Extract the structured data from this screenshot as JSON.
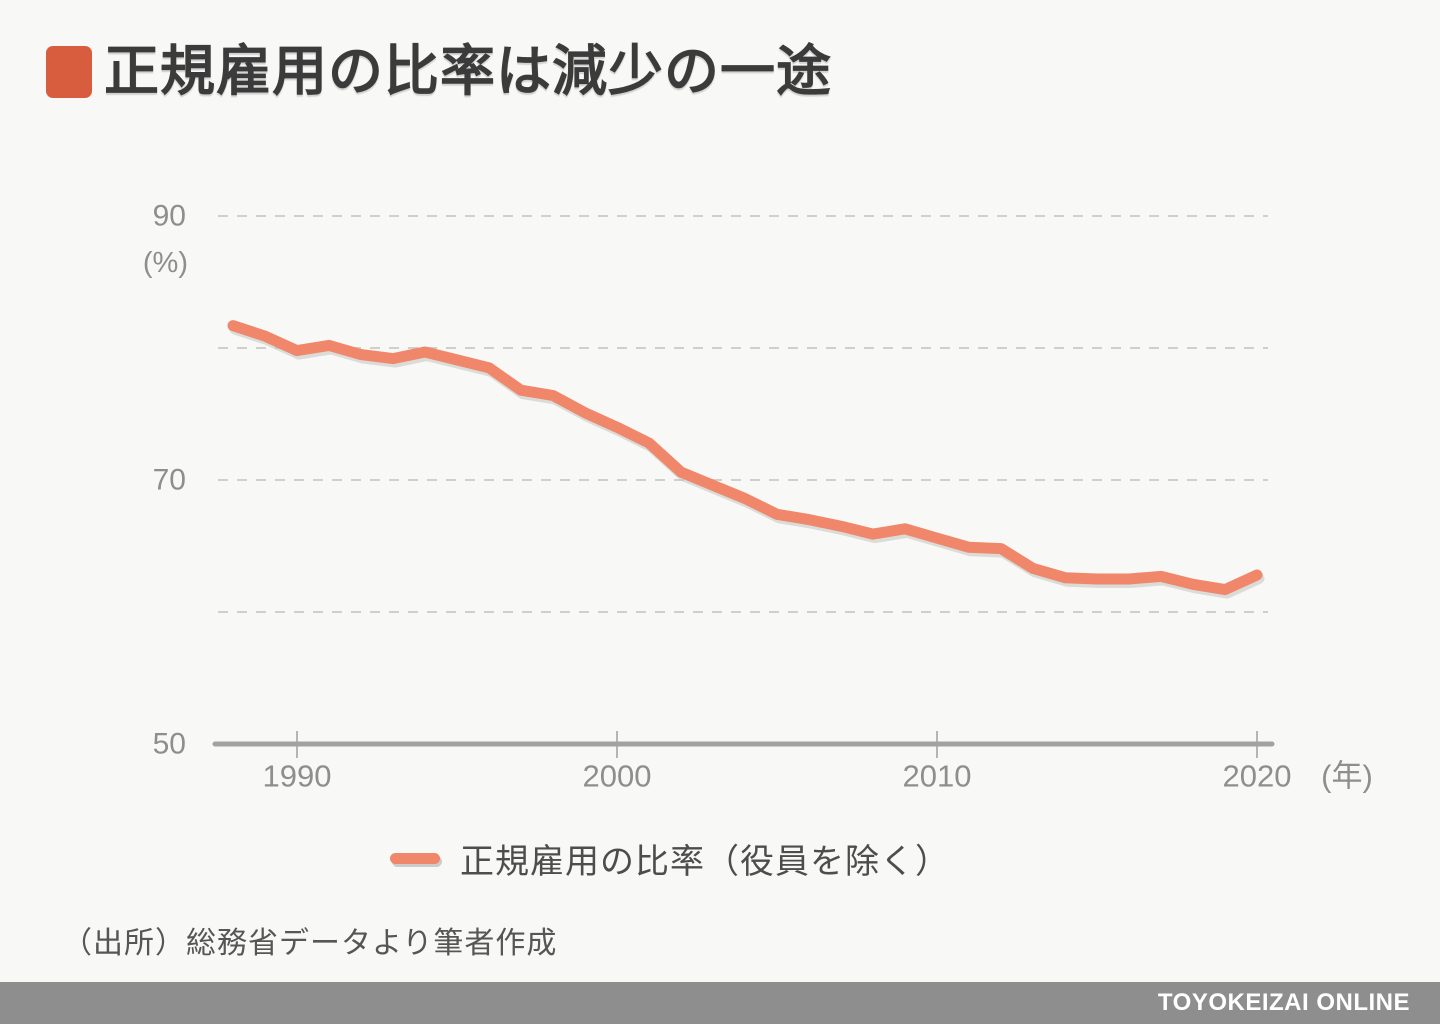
{
  "header": {
    "title": "正規雇用の比率は減少の一途",
    "accent_color": "#d85c3e"
  },
  "chart_data": {
    "type": "line",
    "title": "正規雇用の比率は減少の一途",
    "ylabel_unit": "(%)",
    "xlabel_unit": "(年)",
    "ylim": [
      50,
      92
    ],
    "xlim": [
      1988,
      2020
    ],
    "grid": "horizontal-dashed",
    "y_gridlines": [
      90,
      80,
      70,
      60
    ],
    "y_axis_labels": [
      90,
      70,
      50
    ],
    "x_ticks": [
      1990,
      2000,
      2010,
      2020
    ],
    "line_color": "#f0866a",
    "line_shadow_color": "#c2c2bd",
    "grid_color": "#cfcfcc",
    "axis_color": "#a2a2a0",
    "tick_color": "#b5b5b2",
    "label_color": "#8e8e8e",
    "legend_position": "bottom-center",
    "legend": {
      "label": "正規雇用の比率（役員を除く）"
    },
    "series": [
      {
        "name": "正規雇用の比率（役員を除く）",
        "x": [
          1988,
          1989,
          1990,
          1991,
          1992,
          1993,
          1994,
          1995,
          1996,
          1997,
          1998,
          1999,
          2000,
          2001,
          2002,
          2003,
          2004,
          2005,
          2006,
          2007,
          2008,
          2009,
          2010,
          2011,
          2012,
          2013,
          2014,
          2015,
          2016,
          2017,
          2018,
          2019,
          2020
        ],
        "values": [
          81.7,
          80.9,
          79.8,
          80.2,
          79.5,
          79.2,
          79.7,
          79.1,
          78.5,
          76.8,
          76.4,
          75.1,
          74.0,
          72.8,
          70.6,
          69.6,
          68.6,
          67.4,
          67.0,
          66.5,
          65.9,
          66.3,
          65.6,
          64.9,
          64.8,
          63.3,
          62.6,
          62.5,
          62.5,
          62.7,
          62.1,
          61.7,
          62.8
        ]
      }
    ]
  },
  "source": {
    "text": "（出所）総務省データより筆者作成"
  },
  "footer": {
    "brand": "TOYOKEIZAI ONLINE",
    "background": "#8e8e8e"
  }
}
